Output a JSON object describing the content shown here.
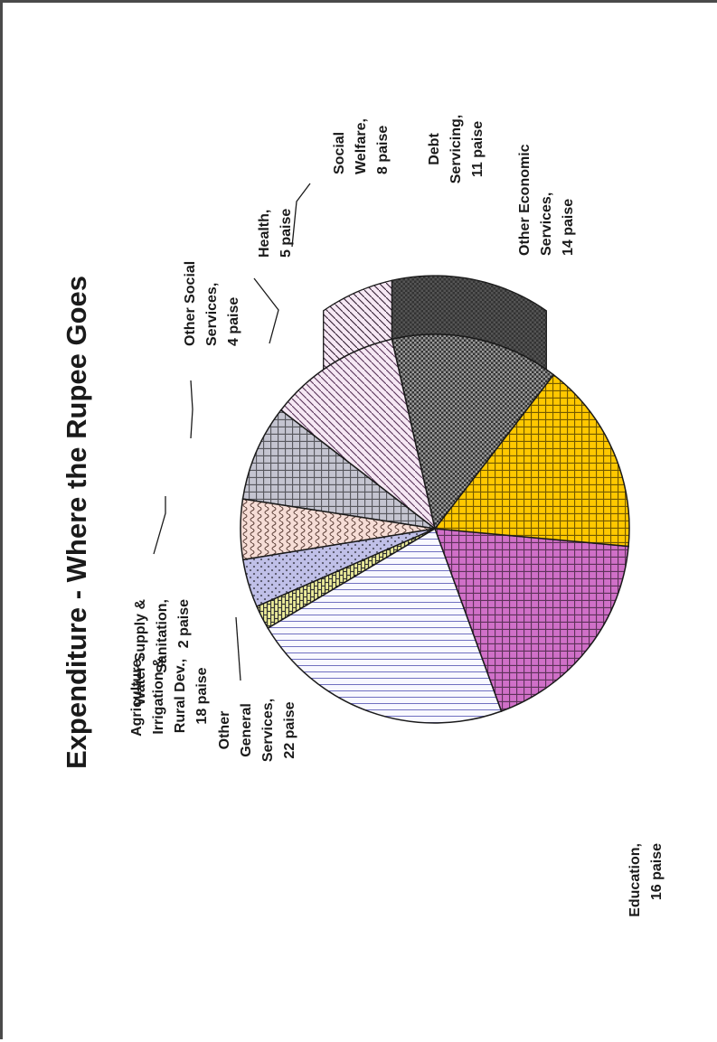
{
  "chart_data": {
    "type": "pie",
    "title": "Expenditure - Where the Rupee Goes",
    "unit": "paise",
    "slices": [
      {
        "label_lines": [
          "Agriculture,",
          "Irrigation &",
          "Rural Dev.,",
          "18 paise"
        ],
        "value": 18,
        "color": "#d070c8",
        "pattern": "grid"
      },
      {
        "label_lines": [
          "Education,",
          "16 paise"
        ],
        "value": 16,
        "color": "#ffc800",
        "pattern": "grid"
      },
      {
        "label_lines": [
          "Other Economic",
          "Services,",
          "14 paise"
        ],
        "value": 14,
        "color": "#9a9a9a",
        "pattern": "checker"
      },
      {
        "label_lines": [
          "Debt",
          "Servicing,",
          "11 paise"
        ],
        "value": 11,
        "color": "#c070c0",
        "pattern": "diagonal"
      },
      {
        "label_lines": [
          "Social",
          "Welfare,",
          "8 paise"
        ],
        "value": 8,
        "color": "#c4c4d0",
        "pattern": "grid"
      },
      {
        "label_lines": [
          "Health,",
          "5 paise"
        ],
        "value": 5,
        "color": "#d89a88",
        "pattern": "wave"
      },
      {
        "label_lines": [
          "Other Social",
          "Services,",
          "4 paise"
        ],
        "value": 4,
        "color": "#c0c0e8",
        "pattern": "dots"
      },
      {
        "label_lines": [
          "Water Supply &",
          "Sanitation,",
          "2 paise"
        ],
        "value": 2,
        "color": "#ecec9a",
        "pattern": "brick"
      },
      {
        "label_lines": [
          "Other",
          "General",
          "Services,",
          "22 paise"
        ],
        "value": 22,
        "color": "#c8c8e8",
        "pattern": "lines"
      }
    ]
  }
}
